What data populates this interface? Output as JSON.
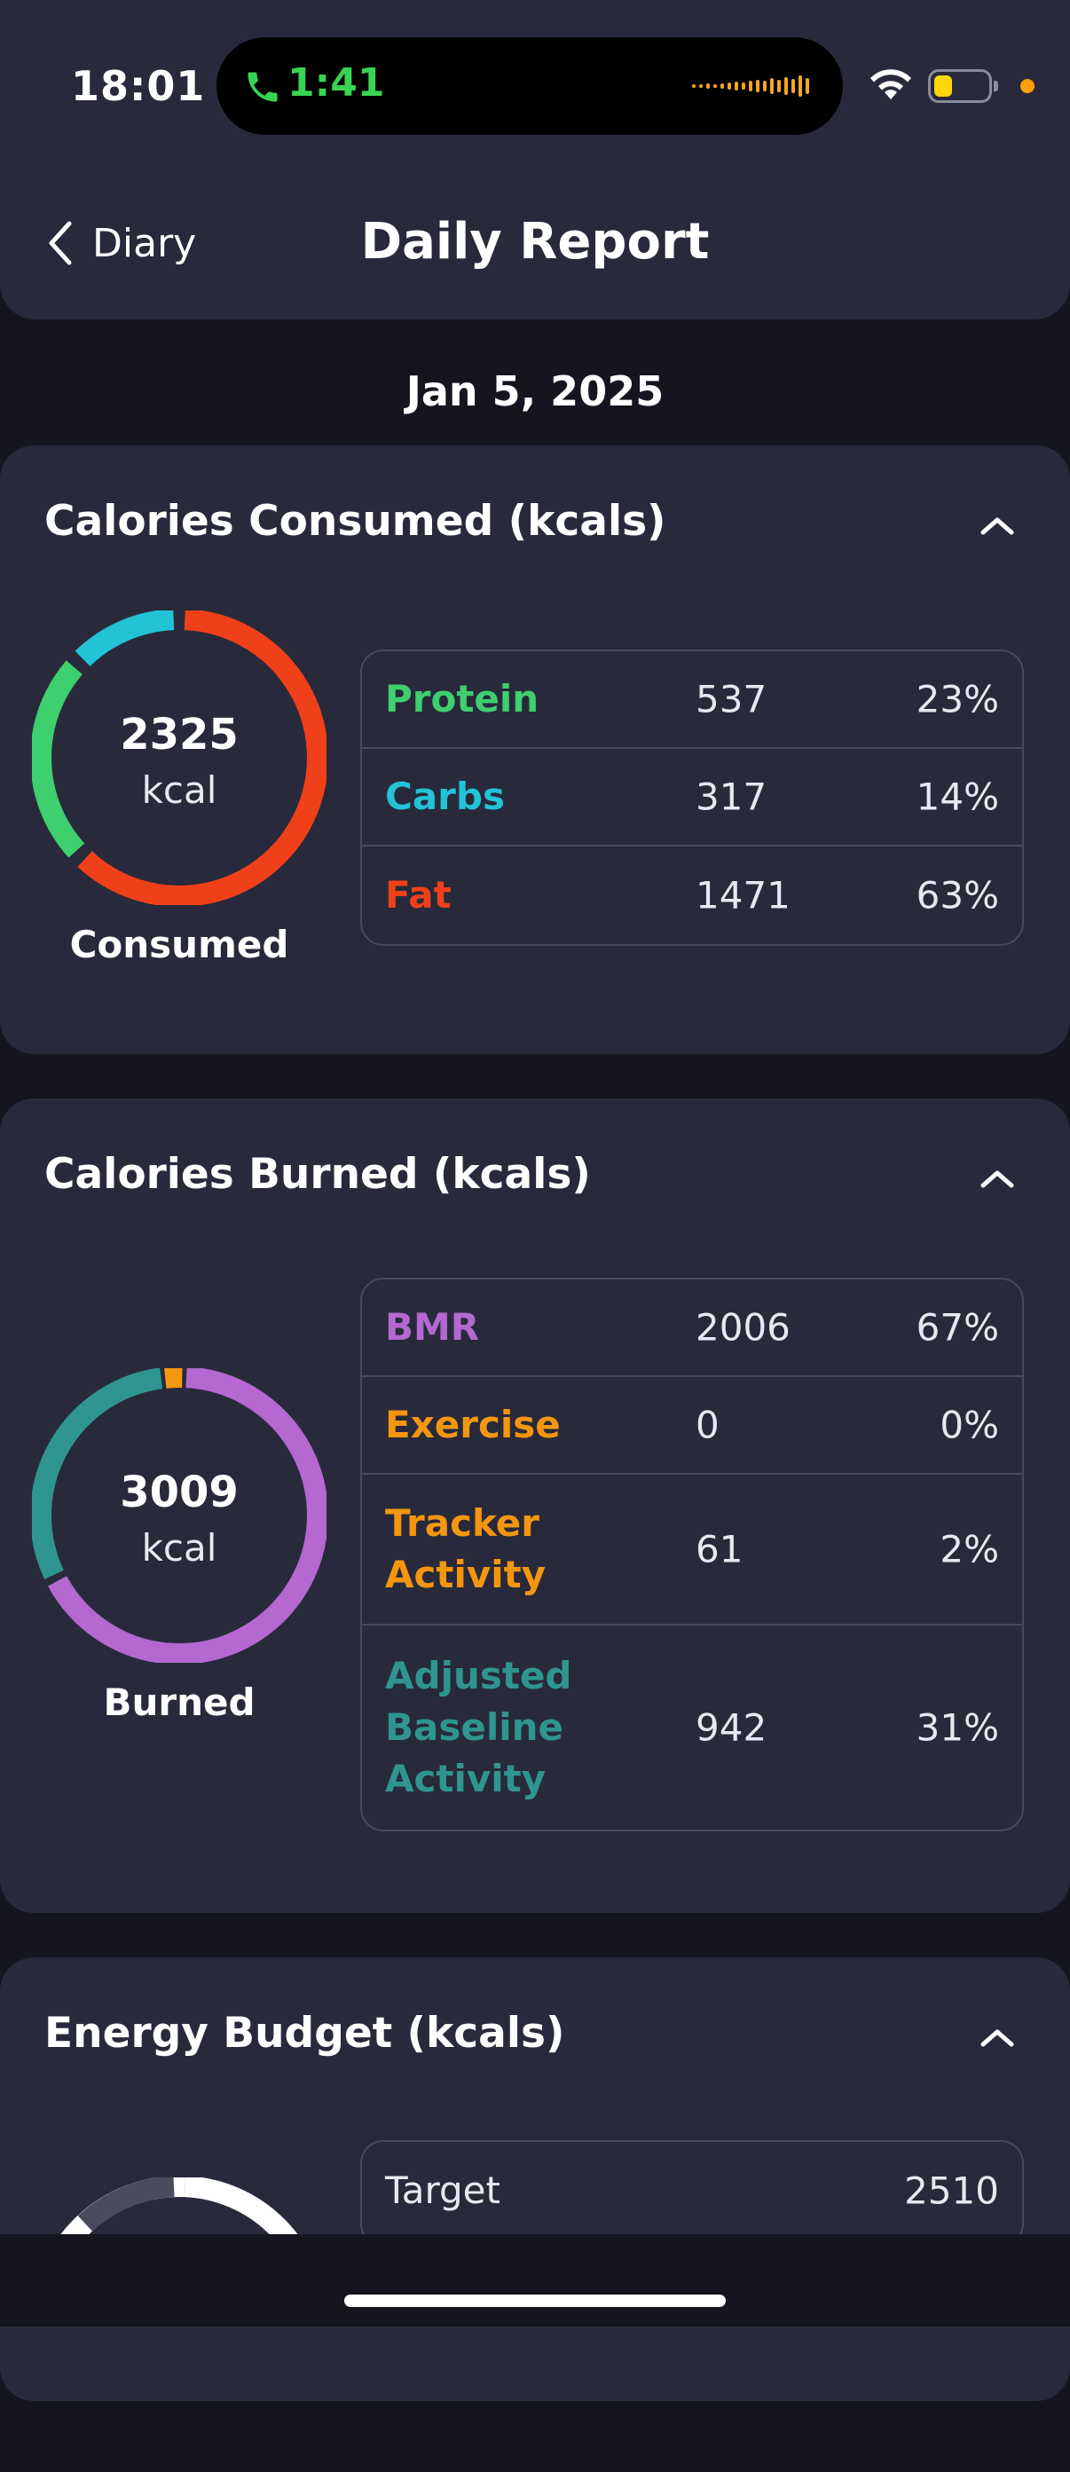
{
  "status": {
    "time": "18:01",
    "call_time": "1:41"
  },
  "header": {
    "back_label": "Diary",
    "title": "Daily Report"
  },
  "date": "Jan 5, 2025",
  "colors": {
    "protein": "#3ecf6e",
    "carbs": "#22c3d6",
    "fat": "#f0401a",
    "bmr": "#b468d0",
    "exercise": "#f5960f",
    "tracker": "#f5960f",
    "baseline": "#2e9590"
  },
  "consumed": {
    "title": "Calories Consumed (kcals)",
    "total": "2325",
    "unit": "kcal",
    "label": "Consumed",
    "rows": [
      {
        "name": "Protein",
        "value": "537",
        "pct": "23%"
      },
      {
        "name": "Carbs",
        "value": "317",
        "pct": "14%"
      },
      {
        "name": "Fat",
        "value": "1471",
        "pct": "63%"
      }
    ]
  },
  "burned": {
    "title": "Calories Burned (kcals)",
    "total": "3009",
    "unit": "kcal",
    "label": "Burned",
    "rows": [
      {
        "name": "BMR",
        "value": "2006",
        "pct": "67%"
      },
      {
        "name": "Exercise",
        "value": "0",
        "pct": "0%"
      },
      {
        "name": "Tracker Activity",
        "value": "61",
        "pct": "2%"
      },
      {
        "name": "Adjusted Baseline Activity",
        "value": "942",
        "pct": "31%"
      }
    ]
  },
  "budget": {
    "title": "Energy Budget (kcals)",
    "rows": [
      {
        "name": "Target",
        "value": "2510"
      }
    ]
  }
}
